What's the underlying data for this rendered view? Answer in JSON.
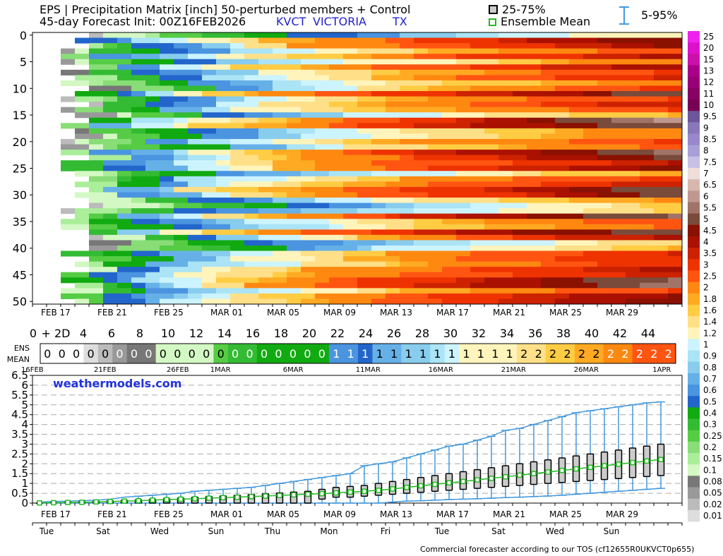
{
  "header": {
    "title_line1": "EPS | Precipitation Matrix [inch]  50-perturbed members + Control",
    "title_line2": "45-day Forecast Init: 00Z16FEB2026",
    "station_code": "KVCT",
    "station_name": "VICTORIA",
    "station_state": "TX",
    "legend_box_label": "25-75%",
    "legend_mean_label": "Ensemble Mean",
    "legend_whisker_label": "5-95%"
  },
  "colors": {
    "mean_line": "#22bb22",
    "whisker": "#4499dd",
    "box_fill": "#cccccc",
    "brand_text": "#2233dd"
  },
  "colorbar": {
    "labels": [
      "25",
      "20",
      "15",
      "13",
      "12",
      "11",
      "10",
      "9.5",
      "9",
      "8.5",
      "8",
      "7.5",
      "7",
      "6.5",
      "6",
      "5.5",
      "5",
      "4.5",
      "4",
      "3.5",
      "3",
      "2.5",
      "2",
      "1.8",
      "1.6",
      "1.4",
      "1.2",
      "1",
      "0.9",
      "0.8",
      "0.7",
      "0.6",
      "0.5",
      "0.4",
      "0.3",
      "0.25",
      "0.2",
      "0.15",
      "0.1",
      "0.08",
      "0.05",
      "0.02",
      "0.01"
    ],
    "colors": [
      "#ee22ee",
      "#dd11cc",
      "#cc11aa",
      "#aa0088",
      "#990077",
      "#880066",
      "#770055",
      "#6f5599",
      "#8877bb",
      "#9988cc",
      "#aaa0d8",
      "#c8c0e6",
      "#eeddd8",
      "#d8b8ae",
      "#c09890",
      "#a07468",
      "#7a4a3a",
      "#8a1000",
      "#aa1100",
      "#cc2200",
      "#ee3300",
      "#ff5511",
      "#ff8811",
      "#ffaa22",
      "#ffcc44",
      "#ffe088",
      "#fff4bb",
      "#ccf4ff",
      "#aae4f6",
      "#88ccee",
      "#66b0e8",
      "#4a94e0",
      "#2266cc",
      "#11aa11",
      "#33bb33",
      "#55cc44",
      "#88dd77",
      "#aaee99",
      "#d4f8c4",
      "#777777",
      "#999999",
      "#bbbbbb",
      "#dddddd"
    ]
  },
  "matrix": {
    "y_ticks": [
      "0",
      "5",
      "10",
      "15",
      "20",
      "25",
      "30",
      "35",
      "40",
      "45",
      "50"
    ],
    "x_date_ticks": [
      "FEB 17",
      "FEB 21",
      "FEB 25",
      "MAR 01",
      "MAR 05",
      "MAR 09",
      "MAR 13",
      "MAR 17",
      "MAR 21",
      "MAR 25",
      "MAR 29"
    ],
    "lead_ticks": [
      "0",
      "+ 2D",
      "4",
      "6",
      "8",
      "10",
      "12",
      "14",
      "16",
      "18",
      "20",
      "22",
      "24",
      "26",
      "28",
      "30",
      "32",
      "34",
      "36",
      "38",
      "40",
      "42",
      "44"
    ]
  },
  "ens_mean": {
    "label_line1": "ENS",
    "label_line2": "MEAN",
    "values": [
      "0",
      "0",
      "0",
      "0",
      "0",
      "0",
      "0",
      "0",
      "0",
      "0",
      "0",
      "0",
      "0",
      "0",
      "0",
      "0",
      "0",
      "0",
      "0",
      "0",
      "1",
      "1",
      "1",
      "1",
      "1",
      "1",
      "1",
      "1",
      "1",
      "1",
      "1",
      "1",
      "1",
      "2",
      "2",
      "2",
      "2",
      "2",
      "2",
      "2",
      "2",
      "2",
      "2",
      "2"
    ],
    "colors": [
      "#ffffff",
      "#ffffff",
      "#ffffff",
      "#dddddd",
      "#bbbbbb",
      "#999999",
      "#777777",
      "#777777",
      "#d4f8c4",
      "#d4f8c4",
      "#d4f8c4",
      "#d4f8c4",
      "#55cc44",
      "#33bb33",
      "#33bb33",
      "#11aa11",
      "#11aa11",
      "#11aa11",
      "#11aa11",
      "#11aa11",
      "#4a94e0",
      "#4a94e0",
      "#2266cc",
      "#66b0e8",
      "#66b0e8",
      "#88ccee",
      "#88ccee",
      "#aae4f6",
      "#ccf4ff",
      "#fff4bb",
      "#fff4bb",
      "#fff4bb",
      "#fff4bb",
      "#ffe088",
      "#ffe088",
      "#ffcc44",
      "#ffcc44",
      "#ffaa22",
      "#ffaa22",
      "#ff8811",
      "#ff8811",
      "#ff5511",
      "#ff5511",
      "#ff5511"
    ],
    "date_labels": [
      "16FEB",
      "21FEB",
      "26FEB",
      "1MAR",
      "6MAR",
      "11MAR",
      "16MAR",
      "21MAR",
      "26MAR",
      "1APR"
    ]
  },
  "bottom": {
    "brand": "weathermodels.com",
    "x_date_ticks": [
      "FEB 17",
      "FEB 21",
      "FEB 25",
      "MAR 01",
      "MAR 05",
      "MAR 09",
      "MAR 13",
      "MAR 17",
      "MAR 21",
      "MAR 25",
      "MAR 29"
    ],
    "weekday_ticks": [
      "Tue",
      "Sat",
      "Wed",
      "Sun",
      "Thu",
      "Mon",
      "Fri",
      "Tue",
      "Sat",
      "Wed",
      "Sun"
    ],
    "footer": "Commercial forecaster according to our TOS (cf12655R0UKVCT0p655)"
  },
  "chart_data": {
    "type": "box",
    "xlabel": "",
    "ylabel": "",
    "ylim": [
      0,
      6.5
    ],
    "y_ticks": [
      "0",
      "0.5",
      "1",
      "1.5",
      "2",
      "2.5",
      "3",
      "3.5",
      "4",
      "4.5",
      "5",
      "5.5",
      "6",
      "6.5"
    ],
    "grid": true,
    "day_offsets": [
      0,
      1,
      2,
      3,
      4,
      5,
      6,
      7,
      8,
      9,
      10,
      11,
      12,
      13,
      14,
      15,
      16,
      17,
      18,
      19,
      20,
      21,
      22,
      23,
      24,
      25,
      26,
      27,
      28,
      29,
      30,
      31,
      32,
      33,
      34,
      35,
      36,
      37,
      38,
      39,
      40,
      41,
      42,
      43,
      44
    ],
    "mean": [
      0.01,
      0.02,
      0.03,
      0.04,
      0.06,
      0.08,
      0.1,
      0.12,
      0.15,
      0.18,
      0.2,
      0.22,
      0.25,
      0.28,
      0.3,
      0.33,
      0.36,
      0.39,
      0.42,
      0.45,
      0.48,
      0.52,
      0.56,
      0.6,
      0.65,
      0.72,
      0.8,
      0.88,
      0.95,
      1.03,
      1.1,
      1.18,
      1.26,
      1.34,
      1.42,
      1.5,
      1.58,
      1.66,
      1.74,
      1.82,
      1.9,
      1.98,
      2.06,
      2.14,
      2.22
    ],
    "q25": [
      0,
      0,
      0,
      0,
      0,
      0,
      0,
      0,
      0,
      0,
      0,
      0,
      0,
      0,
      0,
      0,
      0,
      0,
      0,
      0,
      0.2,
      0.3,
      0.3,
      0.35,
      0.4,
      0.45,
      0.5,
      0.55,
      0.6,
      0.65,
      0.7,
      0.75,
      0.8,
      0.85,
      0.9,
      0.95,
      1.0,
      1.05,
      1.1,
      1.15,
      1.2,
      1.25,
      1.3,
      1.35,
      1.4
    ],
    "q75": [
      0.02,
      0.04,
      0.06,
      0.08,
      0.1,
      0.12,
      0.15,
      0.17,
      0.2,
      0.23,
      0.26,
      0.3,
      0.33,
      0.37,
      0.4,
      0.44,
      0.48,
      0.52,
      0.56,
      0.6,
      0.7,
      0.8,
      0.85,
      0.9,
      1.0,
      1.1,
      1.2,
      1.3,
      1.4,
      1.5,
      1.6,
      1.7,
      1.8,
      1.9,
      2.0,
      2.1,
      2.2,
      2.3,
      2.4,
      2.5,
      2.6,
      2.7,
      2.8,
      2.9,
      3.0
    ],
    "p5": [
      0,
      0,
      0,
      0,
      0,
      0,
      0,
      0,
      0,
      0,
      0,
      0,
      0,
      0,
      0,
      0,
      0,
      0,
      0,
      0,
      0,
      0,
      0,
      0,
      0,
      0.05,
      0.1,
      0.12,
      0.15,
      0.18,
      0.2,
      0.22,
      0.25,
      0.28,
      0.3,
      0.33,
      0.36,
      0.4,
      0.45,
      0.5,
      0.55,
      0.6,
      0.65,
      0.7,
      0.75
    ],
    "p95": [
      0.05,
      0.08,
      0.1,
      0.12,
      0.15,
      0.2,
      0.3,
      0.35,
      0.4,
      0.45,
      0.5,
      0.6,
      0.65,
      0.7,
      0.75,
      0.8,
      0.9,
      1.0,
      1.1,
      1.2,
      1.3,
      1.4,
      1.5,
      1.9,
      2.0,
      2.1,
      2.3,
      2.5,
      2.7,
      2.9,
      3.0,
      3.2,
      3.4,
      3.7,
      3.8,
      4.0,
      4.2,
      4.4,
      4.6,
      4.7,
      4.8,
      4.9,
      5.0,
      5.1,
      5.15
    ]
  }
}
